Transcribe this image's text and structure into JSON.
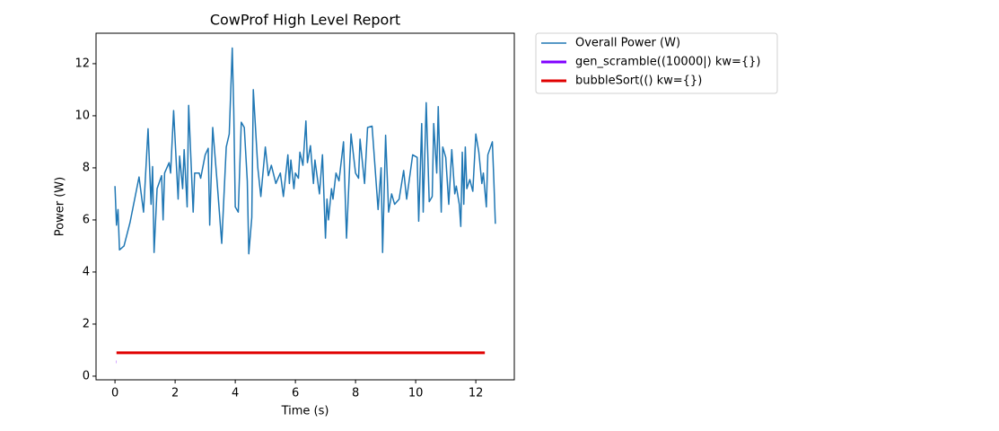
{
  "chart_data": {
    "type": "line",
    "title": "CowProf High Level Report",
    "xlabel": "Time (s)",
    "ylabel": "Power (W)",
    "xlim": [
      -0.63,
      13.28
    ],
    "ylim": [
      -0.14,
      13.17
    ],
    "xticks": [
      0,
      2,
      4,
      6,
      8,
      10,
      12
    ],
    "yticks": [
      0,
      2,
      4,
      6,
      8,
      10,
      12
    ],
    "legend": "outside-upper-right",
    "series": [
      {
        "name": "Overall Power (W)",
        "color": "#1f77b4",
        "linewidth": 1.5,
        "x": [
          0.0,
          0.05,
          0.1,
          0.15,
          0.3,
          0.5,
          0.8,
          0.95,
          1.1,
          1.2,
          1.25,
          1.3,
          1.4,
          1.55,
          1.6,
          1.65,
          1.8,
          1.85,
          1.95,
          2.1,
          2.15,
          2.25,
          2.3,
          2.4,
          2.45,
          2.6,
          2.65,
          2.8,
          2.85,
          3.0,
          3.1,
          3.15,
          3.25,
          3.4,
          3.55,
          3.7,
          3.8,
          3.9,
          3.95,
          4.0,
          4.1,
          4.2,
          4.3,
          4.4,
          4.45,
          4.55,
          4.6,
          4.75,
          4.85,
          5.0,
          5.1,
          5.2,
          5.35,
          5.5,
          5.6,
          5.75,
          5.8,
          5.85,
          5.95,
          6.0,
          6.1,
          6.15,
          6.25,
          6.35,
          6.4,
          6.5,
          6.6,
          6.65,
          6.8,
          6.9,
          7.0,
          7.05,
          7.1,
          7.2,
          7.25,
          7.35,
          7.45,
          7.5,
          7.6,
          7.7,
          7.85,
          8.0,
          8.1,
          8.15,
          8.3,
          8.4,
          8.55,
          8.75,
          8.85,
          8.9,
          9.0,
          9.1,
          9.2,
          9.3,
          9.45,
          9.6,
          9.7,
          9.9,
          10.05,
          10.1,
          10.2,
          10.25,
          10.35,
          10.45,
          10.55,
          10.6,
          10.7,
          10.75,
          10.85,
          10.9,
          11.0,
          11.1,
          11.2,
          11.3,
          11.35,
          11.45,
          11.5,
          11.55,
          11.6,
          11.65,
          11.7,
          11.8,
          11.9,
          12.0,
          12.1,
          12.2,
          12.25,
          12.35,
          12.4,
          12.55,
          12.6,
          12.65
        ],
        "values": [
          7.3,
          5.8,
          6.4,
          4.85,
          5.0,
          5.9,
          7.65,
          6.3,
          9.5,
          6.6,
          8.05,
          4.75,
          7.2,
          7.7,
          6.0,
          7.8,
          8.2,
          7.8,
          10.2,
          6.8,
          8.45,
          7.2,
          8.7,
          6.5,
          10.4,
          6.3,
          7.8,
          7.8,
          7.6,
          8.5,
          8.75,
          5.8,
          9.55,
          7.4,
          5.1,
          8.8,
          9.3,
          12.6,
          10.2,
          6.5,
          6.3,
          9.75,
          9.55,
          7.5,
          4.7,
          6.1,
          11.0,
          8.0,
          6.9,
          8.8,
          7.7,
          8.1,
          7.4,
          7.8,
          6.9,
          8.5,
          7.4,
          8.3,
          7.2,
          7.8,
          7.6,
          8.6,
          8.1,
          9.8,
          8.2,
          8.85,
          7.4,
          8.3,
          7.0,
          8.5,
          5.3,
          6.8,
          6.0,
          7.2,
          6.8,
          7.8,
          7.5,
          8.0,
          9.0,
          5.3,
          9.3,
          7.8,
          7.6,
          9.1,
          7.4,
          9.55,
          9.6,
          6.4,
          8.0,
          4.75,
          9.25,
          6.3,
          7.0,
          6.6,
          6.8,
          7.9,
          6.8,
          8.5,
          8.4,
          5.95,
          9.7,
          6.3,
          10.5,
          6.7,
          6.9,
          9.7,
          7.8,
          10.35,
          6.3,
          8.8,
          8.4,
          6.6,
          8.7,
          7.0,
          7.3,
          6.6,
          5.75,
          8.6,
          6.6,
          8.8,
          7.2,
          7.55,
          7.1,
          9.3,
          8.6,
          7.4,
          7.8,
          6.5,
          8.5,
          9.0,
          7.5,
          5.85
        ]
      },
      {
        "name": "gen_scramble((10000|) kw={})",
        "color": "#8000ff",
        "linewidth": 3,
        "x": [
          0.03,
          0.04
        ],
        "values": [
          0.55,
          0.55
        ]
      },
      {
        "name": "bubbleSort(() kw={})",
        "color": "#e00000",
        "linewidth": 3,
        "x": [
          0.05,
          12.3
        ],
        "values": [
          0.9,
          0.9
        ]
      }
    ]
  }
}
